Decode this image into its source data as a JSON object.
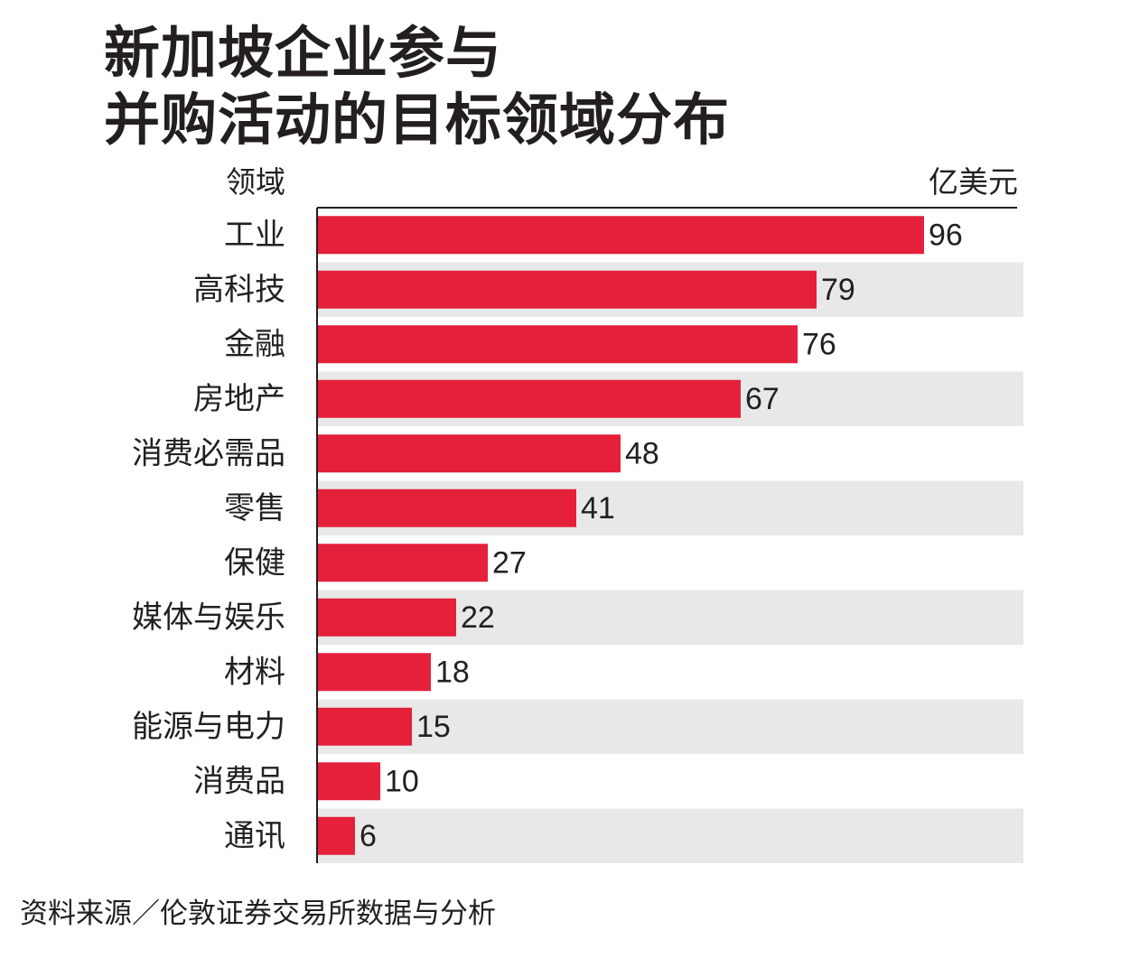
{
  "title": {
    "line1": "新加坡企业参与",
    "line2": "并购活动的目标领域分布"
  },
  "source": "资料来源／伦敦证券交易所数据与分析",
  "colors": {
    "bar": "#e4203b",
    "band": "#e8e8e8",
    "axis": "#231f20",
    "text": "#231f20"
  },
  "chart_data": {
    "type": "bar",
    "orientation": "horizontal",
    "xlabel": "亿美元",
    "ylabel": "领域",
    "categories": [
      "工业",
      "高科技",
      "金融",
      "房地产",
      "消费必需品",
      "零售",
      "保健",
      "媒体与娱乐",
      "材料",
      "能源与电力",
      "消费品",
      "通讯"
    ],
    "values": [
      96,
      79,
      76,
      67,
      48,
      41,
      27,
      22,
      18,
      15,
      10,
      6
    ],
    "xlim": [
      0,
      112
    ],
    "grid": false,
    "legend": "none"
  }
}
